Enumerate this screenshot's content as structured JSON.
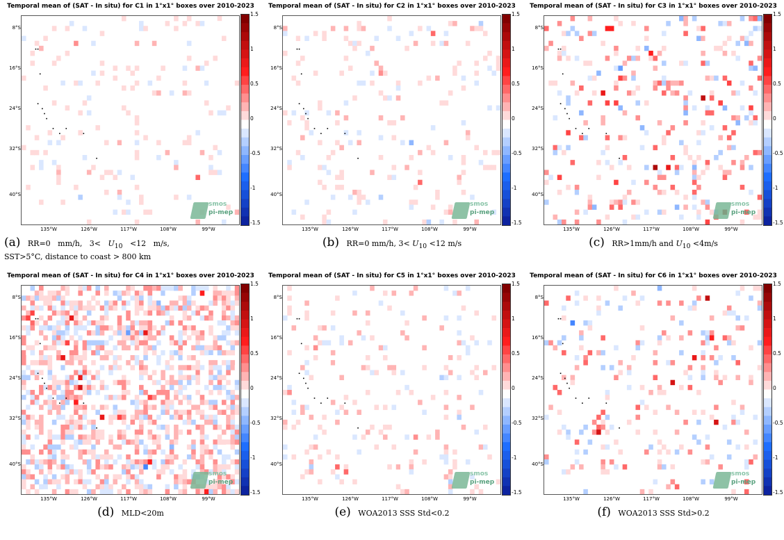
{
  "figure": {
    "colorbar_ticks": [
      "1.5",
      "1",
      "0.5",
      "0",
      "-0.5",
      "-1",
      "-1.5"
    ],
    "lat_labels": [
      "8°S",
      "16°S",
      "24°S",
      "32°S",
      "40°S"
    ],
    "lon_labels": [
      "135°W",
      "126°W",
      "117°W",
      "108°W",
      "99°W"
    ],
    "logo_line1": "smos",
    "logo_line2": "pi-mep",
    "colors": {
      "negative": "#1a3ea8",
      "zero": "#ffffff",
      "positive": "#b10000"
    }
  },
  "panels": [
    {
      "title": "Temporal mean of (SAT - In situ) for C1 in 1°x1° boxes over 2010-2023",
      "label": "(a)",
      "caption_html": "RR=0&nbsp;&nbsp;&nbsp;mm/h,&nbsp;&nbsp;&nbsp;3&lt;&nbsp;&nbsp;&nbsp;<i>U</i><sub>10</sub>&nbsp;&nbsp;&nbsp;&lt;12&nbsp;&nbsp;&nbsp;m/s,<br>SST&gt;5°C, distance to coast &gt; 800 km",
      "density": 0.1,
      "amp": 0.35
    },
    {
      "title": "Temporal mean of (SAT - In situ) for C2 in 1°x1° boxes over 2010-2023",
      "label": "(b)",
      "caption_html": "RR=0 mm/h, 3&lt; <i>U</i><sub>10</sub> &lt;12 m/s",
      "density": 0.11,
      "amp": 0.4
    },
    {
      "title": "Temporal mean of (SAT - In situ) for C3 in 1°x1° boxes over 2010-2023",
      "label": "(c)",
      "caption_html": "RR&gt;1mm/h and <i>U</i><sub>10</sub> &lt;4m/s",
      "density": 0.16,
      "amp": 0.95
    },
    {
      "title": "Temporal mean of (SAT - In situ) for C4 in 1°x1° boxes over 2010-2023",
      "label": "(d)",
      "caption_html": "MLD&lt;20m",
      "density": 0.55,
      "amp": 0.7
    },
    {
      "title": "Temporal mean of (SAT - In situ) for C5 in 1°x1° boxes over 2010-2023",
      "label": "(e)",
      "caption_html": "WOA2013 SSS Std&lt;0.2",
      "density": 0.12,
      "amp": 0.5
    },
    {
      "title": "Temporal mean of (SAT - In situ) for C6 in 1°x1° boxes over 2010-2023",
      "label": "(f)",
      "caption_html": "WOA2013 SSS Std&gt;0.2",
      "density": 0.14,
      "amp": 0.8
    }
  ]
}
